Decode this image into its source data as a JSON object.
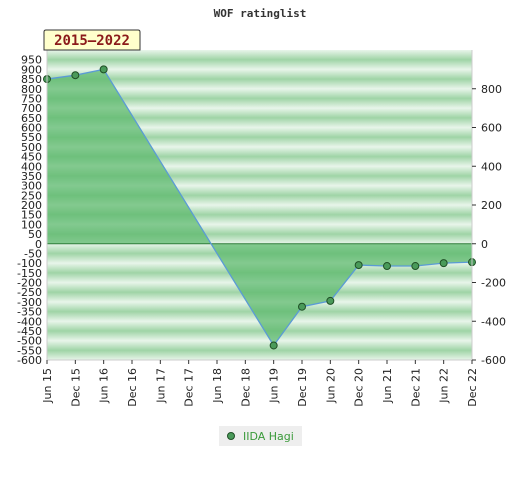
{
  "chart_data": {
    "type": "area",
    "title": "WOF ratinglist",
    "period_badge": "2015–2022",
    "xlabel": "",
    "ylabel": "",
    "categories": [
      "Jun 15",
      "Dec 15",
      "Jun 16",
      "Dec 16",
      "Jun 17",
      "Dec 17",
      "Jun 18",
      "Dec 18",
      "Jun 19",
      "Dec 19",
      "Jun 20",
      "Dec 20",
      "Jun 21",
      "Dec 21",
      "Jun 22",
      "Dec 22"
    ],
    "series": [
      {
        "name": "IIDA Hagi",
        "points": [
          {
            "x": "Jun 15",
            "y": 850
          },
          {
            "x": "Dec 15",
            "y": 870
          },
          {
            "x": "Jun 16",
            "y": 900
          },
          {
            "x": "Jun 19",
            "y": -525
          },
          {
            "x": "Dec 19",
            "y": -325
          },
          {
            "x": "Jun 20",
            "y": -295
          },
          {
            "x": "Dec 20",
            "y": -110
          },
          {
            "x": "Jun 21",
            "y": -115
          },
          {
            "x": "Dec 21",
            "y": -115
          },
          {
            "x": "Jun 22",
            "y": -100
          },
          {
            "x": "Dec 22",
            "y": -95
          }
        ]
      }
    ],
    "y_left": {
      "min": -600,
      "max": 950,
      "step": 50
    },
    "y_right": {
      "ticks": [
        800,
        600,
        400,
        200,
        0,
        -200,
        -400,
        -600
      ]
    },
    "grid": true,
    "legend_position": "bottom-center",
    "colors": {
      "fill": "#5cb86c",
      "line": "#5b9bd5",
      "marker": "#4a9a5a",
      "band_dark": "#9fd4a6",
      "band_light": "#e8f5ea",
      "badge_bg": "#ffffcc",
      "badge_text": "#8b1a1a",
      "legend_text": "#3a9a3a"
    }
  }
}
